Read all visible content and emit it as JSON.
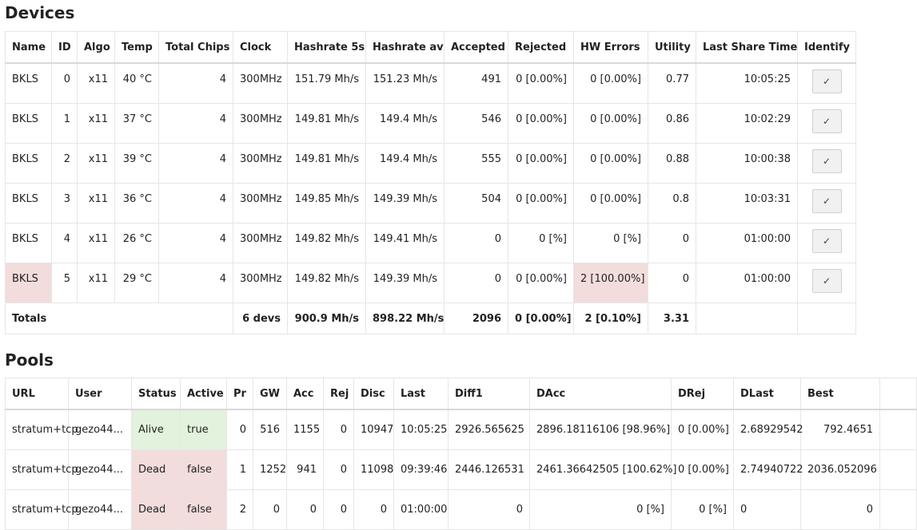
{
  "devices": {
    "title": "Devices",
    "columns": [
      "Name",
      "ID",
      "Algo",
      "Temp",
      "Total Chips",
      "Clock",
      "Hashrate 5s",
      "Hashrate av",
      "Accepted",
      "Rejected",
      "HW Errors",
      "Utility",
      "Last Share Time",
      "Identify"
    ],
    "rows": [
      {
        "name": "BKLS",
        "id": "0",
        "algo": "x11",
        "temp": "40 °C",
        "chips": "4",
        "clock": "300MHz",
        "hr5s": "151.79 Mh/s",
        "hrav": "151.23 Mh/s",
        "accepted": "491",
        "rejected": "0 [0.00%]",
        "hw": "0 [0.00%]",
        "utility": "0.77",
        "last": "10:05:25",
        "identify": "✓"
      },
      {
        "name": "BKLS",
        "id": "1",
        "algo": "x11",
        "temp": "37 °C",
        "chips": "4",
        "clock": "300MHz",
        "hr5s": "149.81 Mh/s",
        "hrav": "149.4 Mh/s",
        "accepted": "546",
        "rejected": "0 [0.00%]",
        "hw": "0 [0.00%]",
        "utility": "0.86",
        "last": "10:02:29",
        "identify": "✓"
      },
      {
        "name": "BKLS",
        "id": "2",
        "algo": "x11",
        "temp": "39 °C",
        "chips": "4",
        "clock": "300MHz",
        "hr5s": "149.81 Mh/s",
        "hrav": "149.4 Mh/s",
        "accepted": "555",
        "rejected": "0 [0.00%]",
        "hw": "0 [0.00%]",
        "utility": "0.88",
        "last": "10:00:38",
        "identify": "✓"
      },
      {
        "name": "BKLS",
        "id": "3",
        "algo": "x11",
        "temp": "36 °C",
        "chips": "4",
        "clock": "300MHz",
        "hr5s": "149.85 Mh/s",
        "hrav": "149.39 Mh/s",
        "accepted": "504",
        "rejected": "0 [0.00%]",
        "hw": "0 [0.00%]",
        "utility": "0.8",
        "last": "10:03:31",
        "identify": "✓"
      },
      {
        "name": "BKLS",
        "id": "4",
        "algo": "x11",
        "temp": "26 °C",
        "chips": "4",
        "clock": "300MHz",
        "hr5s": "149.82 Mh/s",
        "hrav": "149.41 Mh/s",
        "accepted": "0",
        "rejected": "0 [%]",
        "hw": "0 [%]",
        "utility": "0",
        "last": "01:00:00",
        "identify": "✓"
      },
      {
        "name": "BKLS",
        "id": "5",
        "algo": "x11",
        "temp": "29 °C",
        "chips": "4",
        "clock": "300MHz",
        "hr5s": "149.82 Mh/s",
        "hrav": "149.39 Mh/s",
        "accepted": "0",
        "rejected": "0 [0.00%]",
        "hw": "2 [100.00%]",
        "utility": "0",
        "last": "01:00:00",
        "identify": "✓"
      }
    ],
    "totals": {
      "label": "Totals",
      "devs": "6 devs",
      "hr5s": "900.9 Mh/s",
      "hrav": "898.22 Mh/s",
      "accepted": "2096",
      "rejected": "0 [0.00%]",
      "hw": "2 [0.10%]",
      "utility": "3.31"
    }
  },
  "pools": {
    "title": "Pools",
    "columns": [
      "URL",
      "User",
      "Status",
      "Active",
      "Pr",
      "GW",
      "Acc",
      "Rej",
      "Disc",
      "Last",
      "Diff1",
      "DAcc",
      "DRej",
      "DLast",
      "Best"
    ],
    "rows": [
      {
        "url": "stratum+tcp",
        "user": "gezo44...",
        "status": "Alive",
        "active": "true",
        "pr": "0",
        "gw": "516",
        "acc": "1155",
        "rej": "0",
        "disc": "10947",
        "last": "10:05:25",
        "diff1": "2926.565625",
        "dacc": "2896.18116106 [98.96%]",
        "drej": "0 [0.00%]",
        "dlast": "2.68929542",
        "best": "792.4651"
      },
      {
        "url": "stratum+tcp",
        "user": "gezo44...",
        "status": "Dead",
        "active": "false",
        "pr": "1",
        "gw": "1252",
        "acc": "941",
        "rej": "0",
        "disc": "11098",
        "last": "09:39:46",
        "diff1": "2446.126531",
        "dacc": "2461.36642505 [100.62%]",
        "drej": "0 [0.00%]",
        "dlast": "2.74940722",
        "best": "2036.052096"
      },
      {
        "url": "stratum+tcp",
        "user": "gezo44...",
        "status": "Dead",
        "active": "false",
        "pr": "2",
        "gw": "0",
        "acc": "0",
        "rej": "0",
        "disc": "0",
        "last": "01:00:00",
        "diff1": "0",
        "dacc": "0 [%]",
        "drej": "0 [%]",
        "dlast": "0",
        "best": "0"
      }
    ]
  },
  "colors": {
    "alive_bg": "#e2f2dc",
    "dead_bg": "#f2dcdc",
    "error_bg": "#f2dcdc"
  }
}
